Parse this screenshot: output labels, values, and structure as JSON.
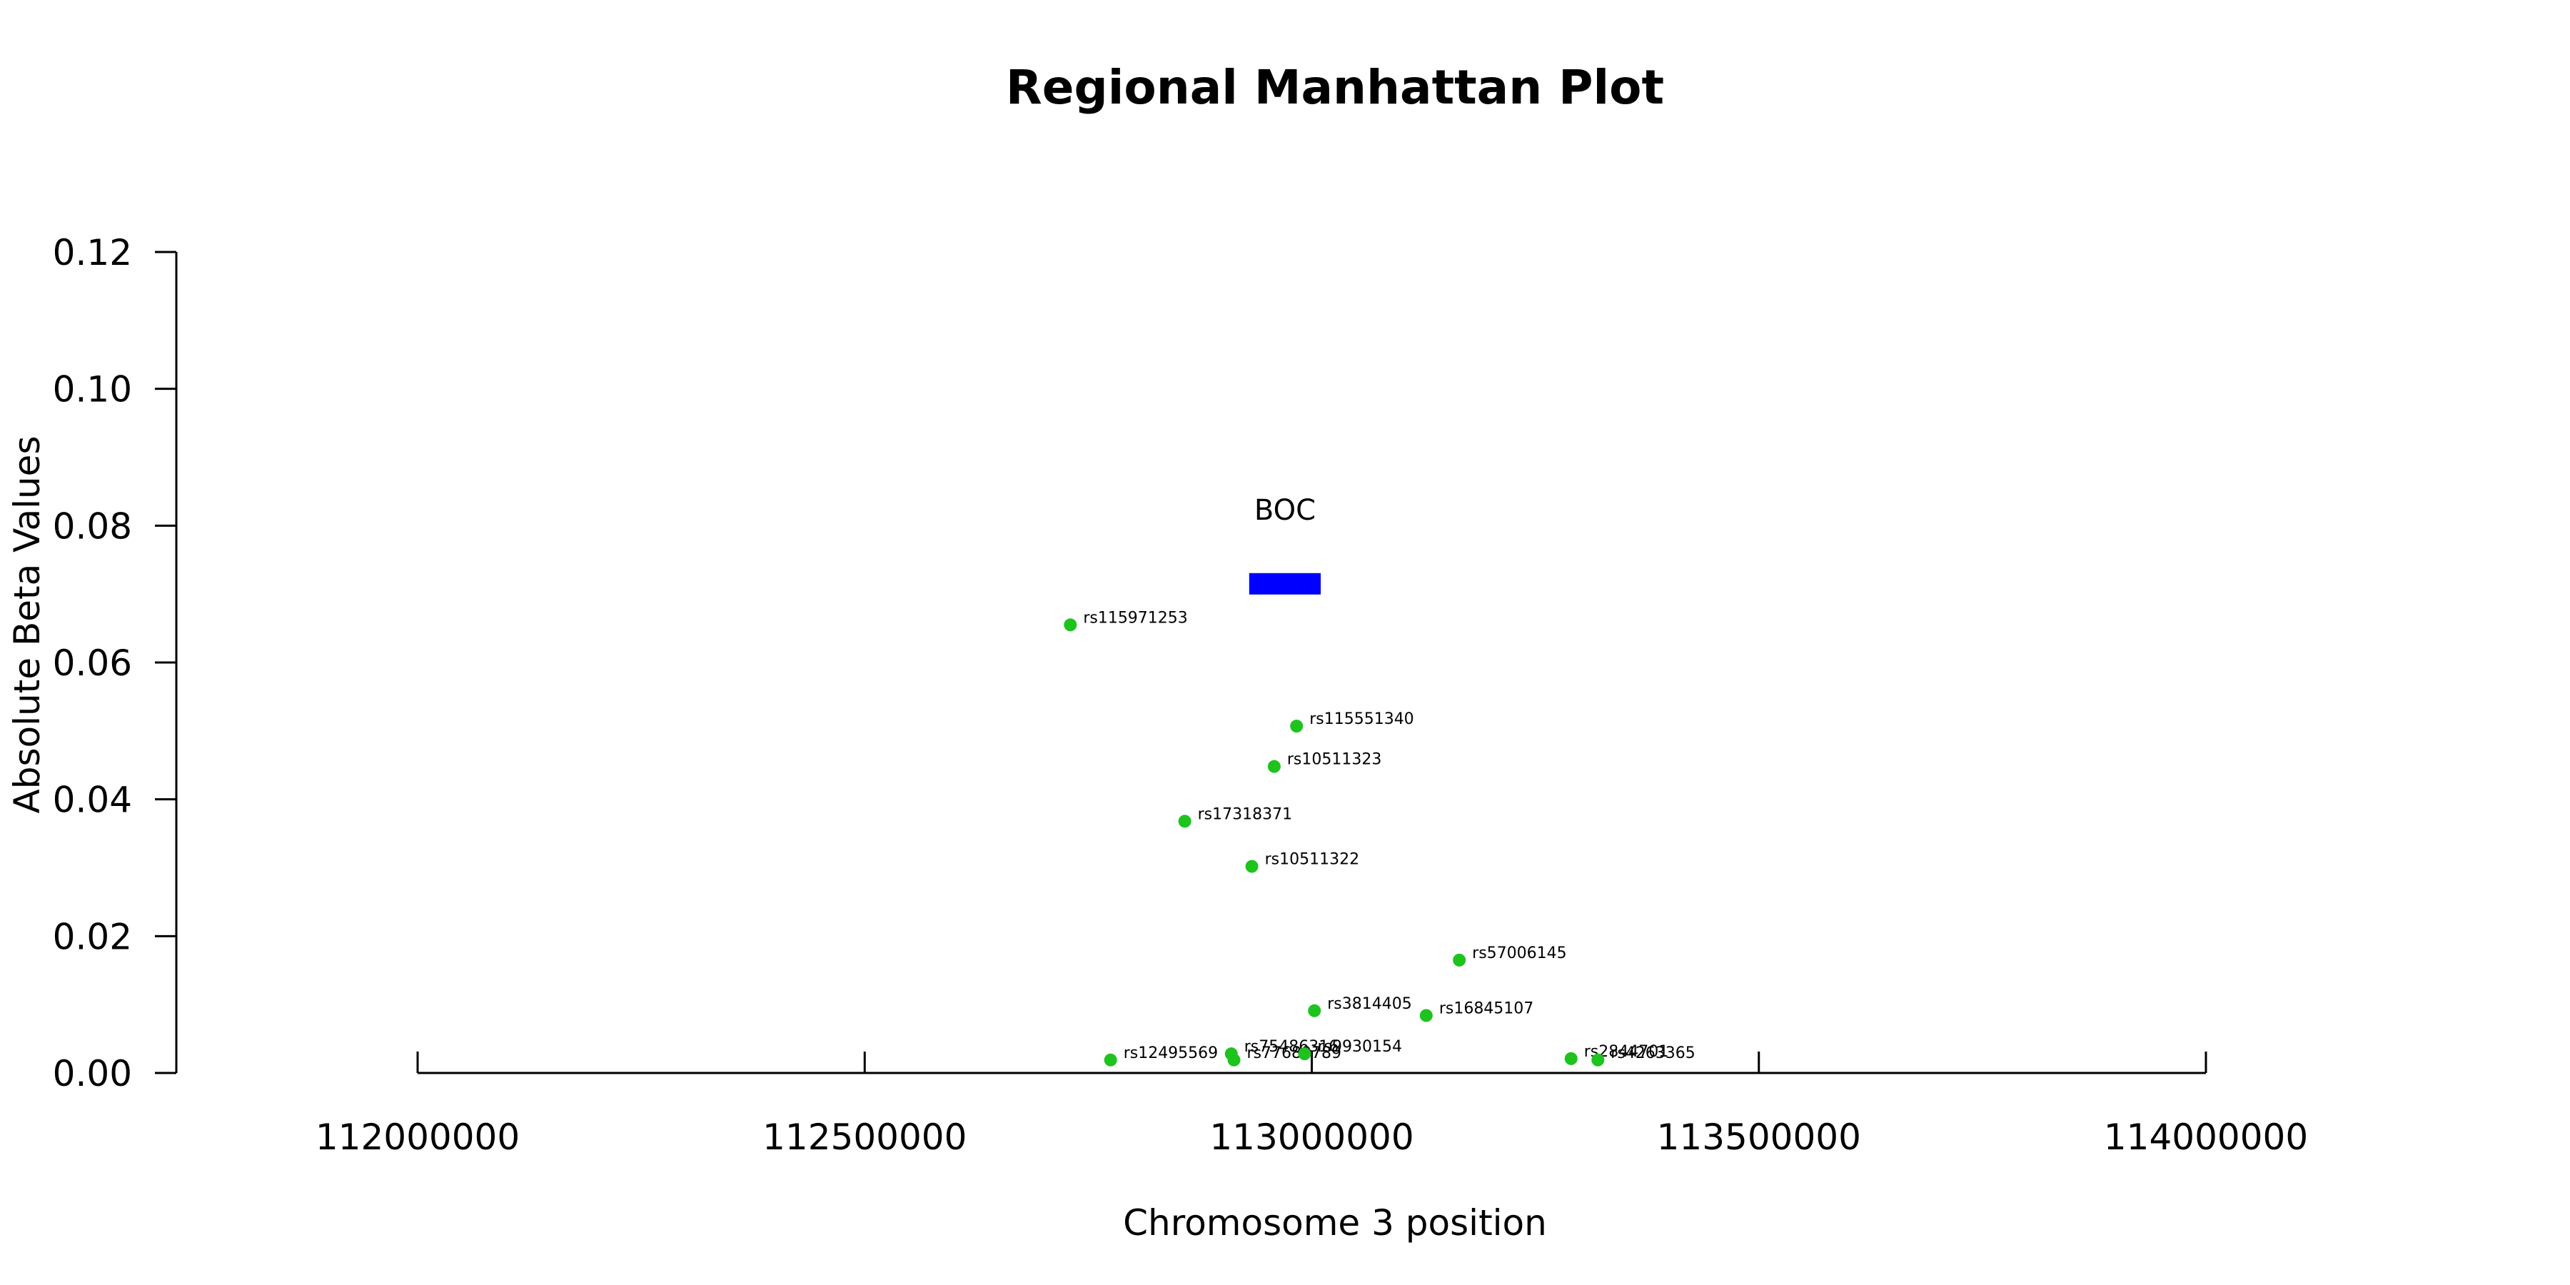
{
  "chart_data": {
    "type": "scatter",
    "title": "Regional Manhattan Plot",
    "xlabel": "Chromosome 3 position",
    "ylabel": "Absolute Beta Values",
    "xlim": [
      112000000,
      114000000
    ],
    "ylim": [
      0,
      0.12
    ],
    "x_ticks": [
      112000000,
      112500000,
      113000000,
      113500000,
      114000000
    ],
    "x_tick_labels": [
      "112000000",
      "112500000",
      "113000000",
      "113500000",
      "114000000"
    ],
    "y_ticks": [
      0,
      0.02,
      0.04,
      0.06,
      0.08,
      0.1,
      0.12
    ],
    "y_tick_labels": [
      "0.00",
      "0.02",
      "0.04",
      "0.06",
      "0.08",
      "0.10",
      "0.12"
    ],
    "grid": false,
    "point_color": "#1ec31e",
    "gene": {
      "name": "BOC",
      "start": 112930000,
      "end": 113010000,
      "y": 0.0715,
      "color": "#0000ff"
    },
    "points": [
      {
        "label": "rs115971253",
        "x": 112730000,
        "y": 0.0655
      },
      {
        "label": "rs115551340",
        "x": 112983000,
        "y": 0.0507
      },
      {
        "label": "rs10511323",
        "x": 112958000,
        "y": 0.0448
      },
      {
        "label": "rs17318371",
        "x": 112858000,
        "y": 0.0368
      },
      {
        "label": "rs10511322",
        "x": 112933000,
        "y": 0.0302
      },
      {
        "label": "rs57006145",
        "x": 113165000,
        "y": 0.0165
      },
      {
        "label": "rs3814405",
        "x": 113003000,
        "y": 0.0091
      },
      {
        "label": "rs16845107",
        "x": 113128000,
        "y": 0.0084
      },
      {
        "label": "rs12495569",
        "x": 112775000,
        "y": 0.0019
      },
      {
        "label": "rs75486316",
        "x": 112910000,
        "y": 0.0028
      },
      {
        "label": "rs77689789",
        "x": 112913000,
        "y": 0.0019
      },
      {
        "label": "rs9930154",
        "x": 112992000,
        "y": 0.0028
      },
      {
        "label": "rs2844701",
        "x": 113290000,
        "y": 0.0021
      },
      {
        "label": "rs4263365",
        "x": 113320000,
        "y": 0.0019
      }
    ]
  }
}
